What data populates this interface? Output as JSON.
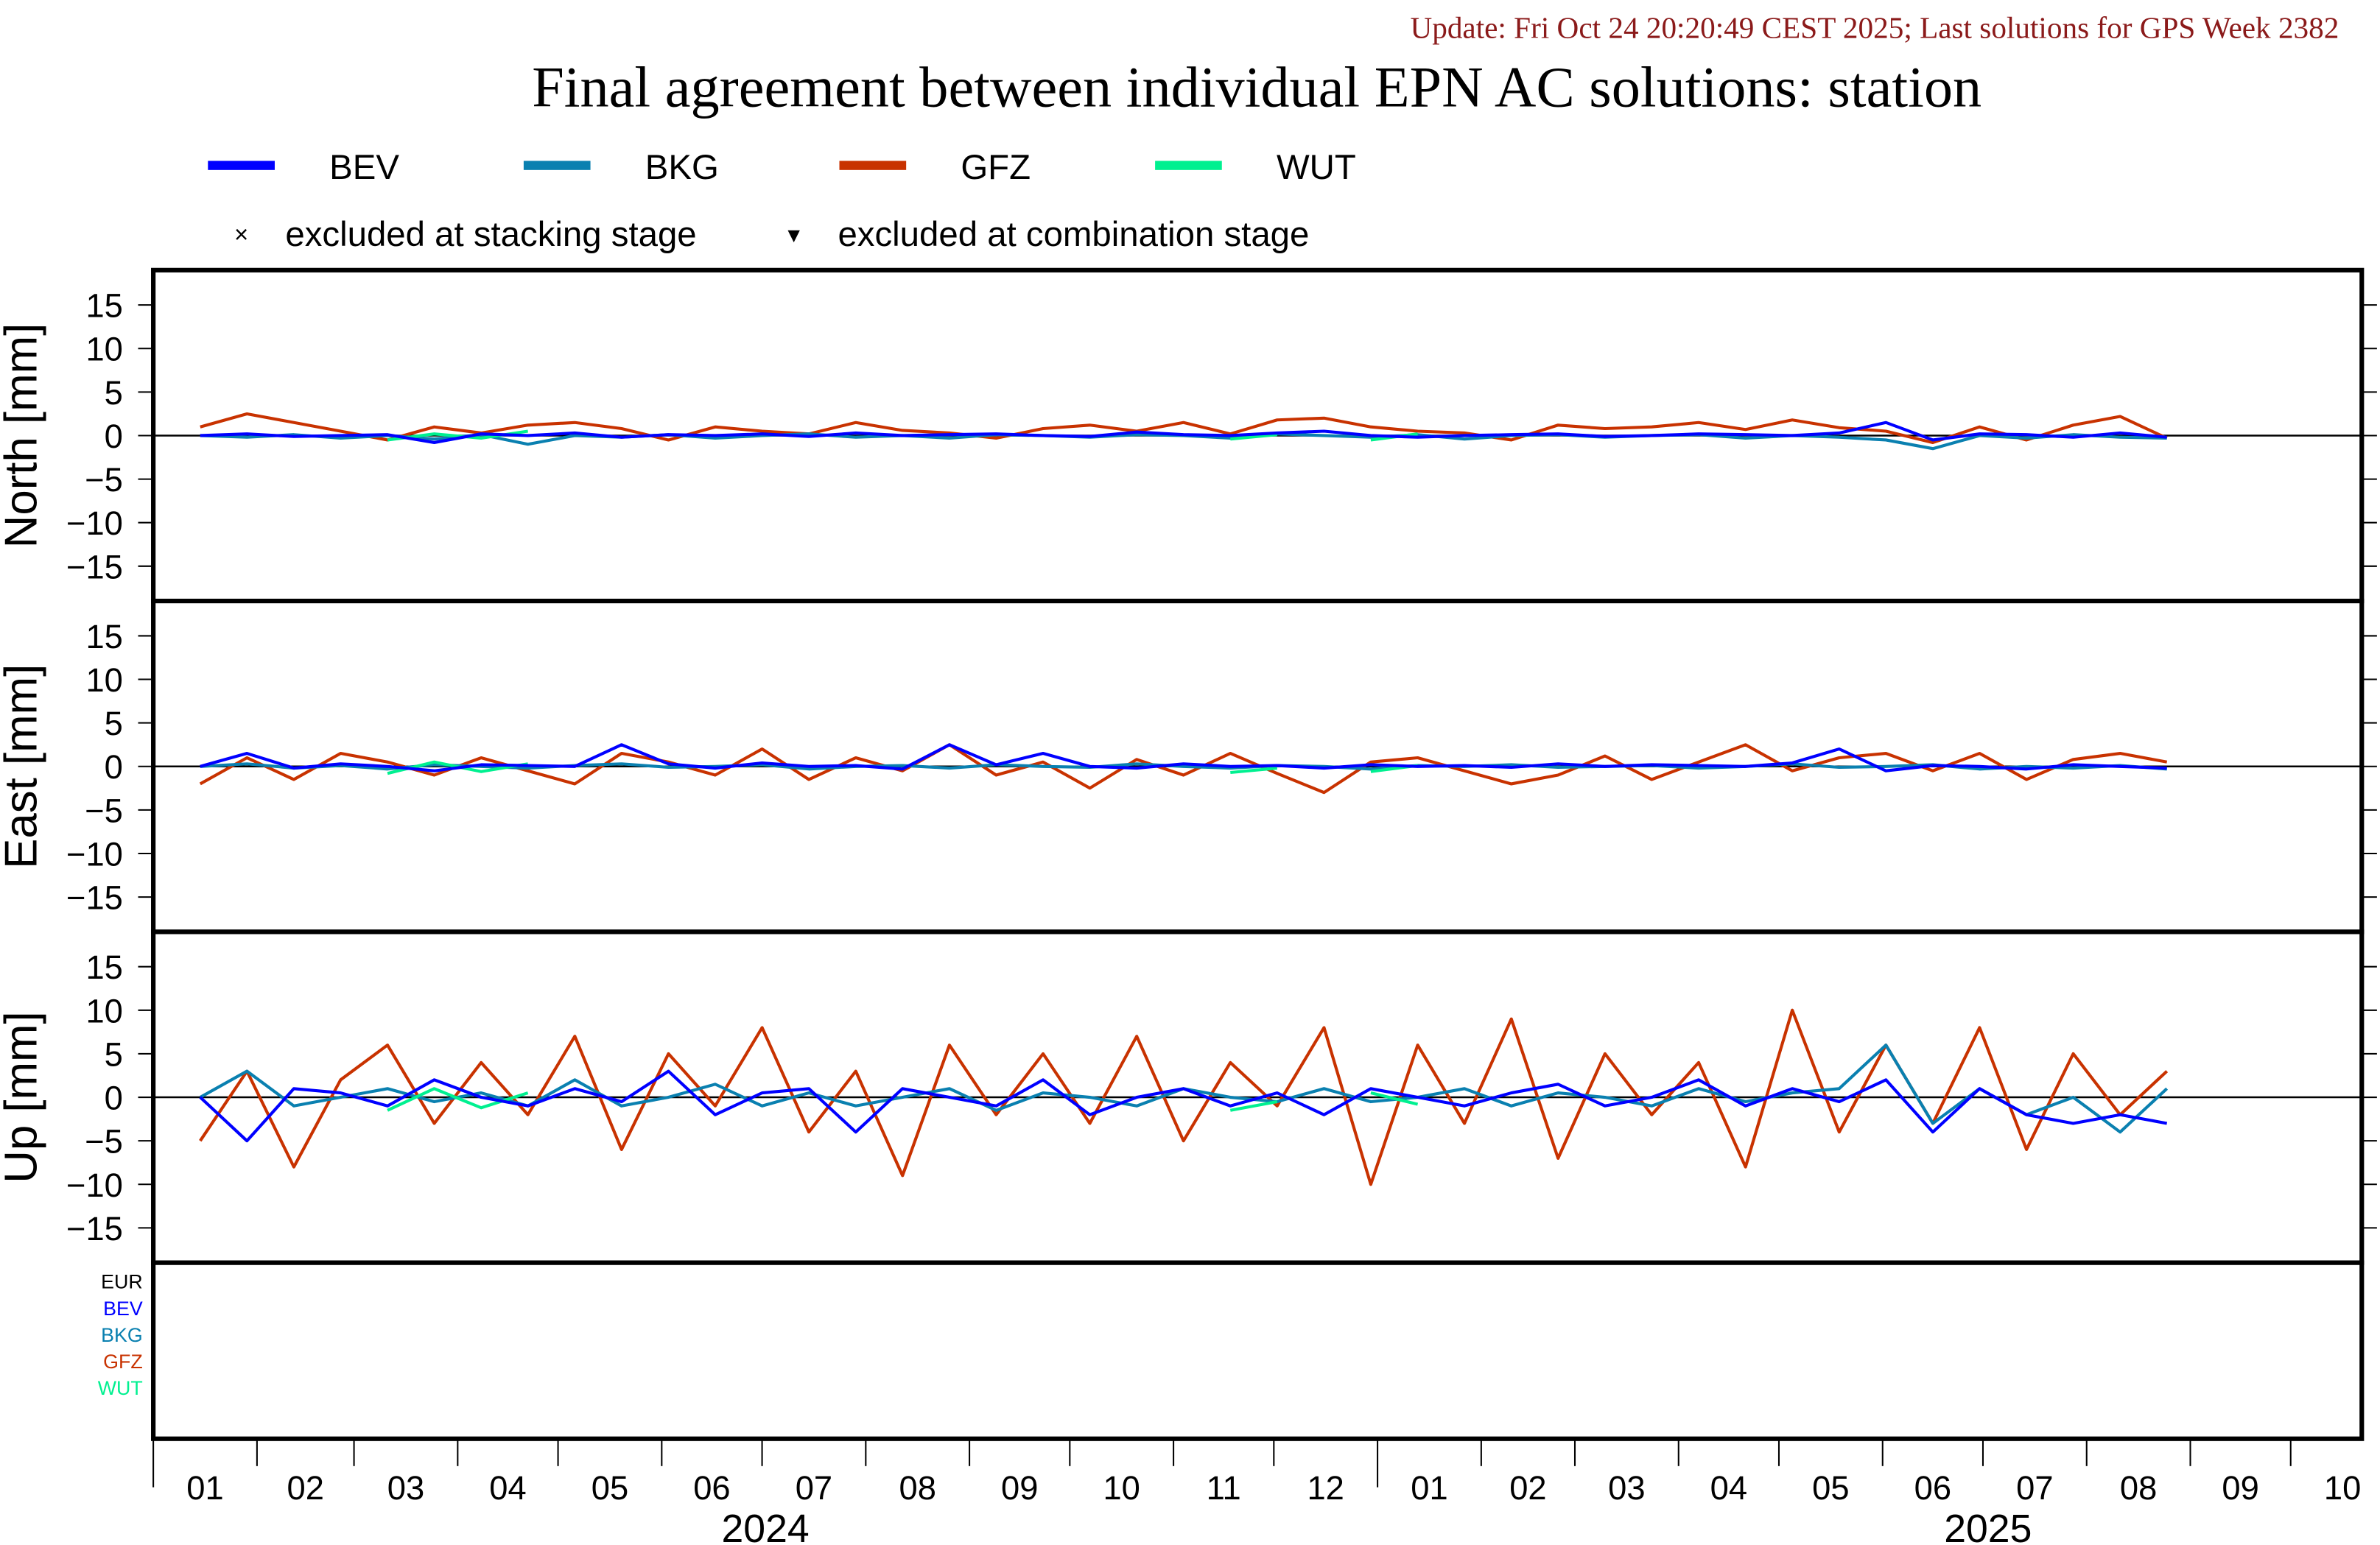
{
  "chart_data": {
    "type": "line",
    "update_note": "Update: Fri Oct 24 20:20:49 CEST 2025; Last solutions for GPS Week 2382",
    "title": "Final agreement between individual EPN AC solutions: station",
    "legend": {
      "placement": "top-left",
      "series": [
        {
          "name": "BEV",
          "color": "#0000ff"
        },
        {
          "name": "BKG",
          "color": "#0a80b0"
        },
        {
          "name": "GFZ",
          "color": "#c83200"
        },
        {
          "name": "WUT",
          "color": "#00f090"
        }
      ],
      "markers": [
        {
          "symbol": "×",
          "label": "excluded at stacking stage"
        },
        {
          "symbol": "▾",
          "label": "excluded at combination stage"
        }
      ]
    },
    "x": {
      "start_date": "2024-01-15",
      "step_days": 14,
      "axis_start": "2024-01-01",
      "axis_end": "2025-10-31"
    },
    "x_ticks": {
      "months_2024": [
        "01",
        "02",
        "03",
        "04",
        "05",
        "06",
        "07",
        "08",
        "09",
        "10",
        "11",
        "12"
      ],
      "months_2025": [
        "01",
        "02",
        "03",
        "04",
        "05",
        "06",
        "07",
        "08",
        "09",
        "10"
      ],
      "years": [
        "2024",
        "2025"
      ]
    },
    "ylim": [
      -19,
      19
    ],
    "yticks": [
      15,
      10,
      5,
      0,
      -5,
      -10,
      -15
    ],
    "panels": [
      {
        "ylabel": "North [mm]",
        "series": {
          "GFZ": [
            1,
            2.5,
            1.5,
            0.5,
            -0.5,
            1,
            0.3,
            1.2,
            1.5,
            0.8,
            -0.5,
            1,
            0.5,
            0.2,
            1.5,
            0.6,
            0.3,
            -0.3,
            0.8,
            1.2,
            0.5,
            1.5,
            0.2,
            1.8,
            2,
            1,
            0.5,
            0.3,
            -0.5,
            1.2,
            0.8,
            1,
            1.5,
            0.7,
            1.8,
            0.9,
            0.5,
            -0.8,
            1,
            -0.5,
            1.2,
            2.2,
            -0.3
          ],
          "BEV": [
            0,
            0.2,
            -0.1,
            0,
            0.1,
            -0.8,
            0.2,
            0,
            0.3,
            -0.2,
            0.1,
            0,
            0.2,
            -0.1,
            0.3,
            0,
            0.1,
            0.2,
            0,
            -0.1,
            0.4,
            0.1,
            0,
            0.3,
            0.5,
            0,
            -0.2,
            0,
            0.1,
            0.2,
            -0.1,
            0,
            0.2,
            0.1,
            0,
            0.3,
            1.5,
            -0.5,
            0.2,
            0.1,
            -0.2,
            0.3,
            -0.2
          ],
          "BKG": [
            0,
            -0.2,
            0.1,
            -0.3,
            0,
            -0.4,
            0.1,
            -1,
            0,
            -0.2,
            0.1,
            -0.3,
            0,
            0.2,
            -0.2,
            0,
            -0.3,
            0.1,
            0,
            -0.2,
            0.1,
            0,
            -0.3,
            0.2,
            0,
            -0.2,
            0.1,
            -0.4,
            0,
            0.1,
            -0.2,
            0,
            0.1,
            -0.3,
            0,
            -0.2,
            -0.5,
            -1.5,
            0,
            -0.3,
            0.1,
            -0.2,
            -0.3
          ],
          "WUT": [
            null,
            null,
            null,
            null,
            -0.5,
            0.2,
            -0.3,
            0.5,
            null,
            null,
            null,
            null,
            null,
            null,
            null,
            null,
            null,
            null,
            null,
            null,
            null,
            null,
            -0.4,
            0.1,
            null,
            -0.5,
            0.2,
            null,
            null,
            null,
            null,
            null,
            null,
            null,
            null,
            null,
            null,
            null,
            null,
            null,
            null,
            null,
            null
          ]
        }
      },
      {
        "ylabel": "East [mm]",
        "series": {
          "GFZ": [
            -2,
            1,
            -1.5,
            1.5,
            0.5,
            -1,
            1,
            -0.5,
            -2,
            1.5,
            0.5,
            -1,
            2,
            -1.5,
            1,
            -0.5,
            2.5,
            -1,
            0.5,
            -2.5,
            0.8,
            -1,
            1.5,
            -0.8,
            -3,
            0.5,
            1,
            -0.5,
            -2,
            -1,
            1.2,
            -1.5,
            0.5,
            2.5,
            -0.5,
            1,
            1.5,
            -0.5,
            1.5,
            -1.5,
            0.8,
            1.5,
            0.5
          ],
          "BEV": [
            0,
            1.5,
            -0.2,
            0.3,
            0,
            -0.5,
            0.2,
            0.1,
            0,
            2.5,
            0.3,
            -0.2,
            0.4,
            0,
            0.1,
            -0.3,
            2.5,
            0.2,
            1.5,
            0,
            -0.2,
            0.3,
            0,
            0.1,
            -0.2,
            0.2,
            0,
            0.1,
            -0.1,
            0.3,
            0,
            0.2,
            0.1,
            0,
            0.4,
            2,
            -0.5,
            0.1,
            0,
            -0.3,
            0.2,
            0,
            -0.2
          ],
          "BKG": [
            0,
            0.3,
            -0.2,
            0.1,
            -0.3,
            0.2,
            0,
            -0.2,
            0.1,
            0.3,
            -0.1,
            0,
            0.2,
            -0.3,
            0,
            0.1,
            -0.2,
            0.2,
            0,
            -0.1,
            0.3,
            0,
            -0.2,
            0.1,
            0,
            -0.3,
            0.1,
            0,
            0.2,
            -0.1,
            0,
            0.1,
            -0.2,
            0,
            0.3,
            -0.1,
            0,
            0.2,
            -0.3,
            0,
            -0.2,
            0.1,
            -0.3
          ],
          "WUT": [
            null,
            null,
            null,
            null,
            -0.8,
            0.5,
            -0.6,
            0.3,
            null,
            null,
            null,
            null,
            null,
            null,
            null,
            null,
            null,
            null,
            null,
            null,
            null,
            null,
            -0.7,
            -0.2,
            null,
            -0.6,
            0.1,
            null,
            null,
            null,
            null,
            null,
            null,
            null,
            null,
            null,
            null,
            null,
            null,
            null,
            null,
            null,
            null
          ]
        }
      },
      {
        "ylabel": "Up [mm]",
        "series": {
          "GFZ": [
            -5,
            3,
            -8,
            2,
            6,
            -3,
            4,
            -2,
            7,
            -6,
            5,
            -1,
            8,
            -4,
            3,
            -9,
            6,
            -2,
            5,
            -3,
            7,
            -5,
            4,
            -1,
            8,
            -10,
            6,
            -3,
            9,
            -7,
            5,
            -2,
            4,
            -8,
            10,
            -4,
            6,
            -3,
            8,
            -6,
            5,
            -2,
            3
          ],
          "BEV": [
            0,
            -5,
            1,
            0.5,
            -1,
            2,
            0,
            -1,
            1,
            -0.5,
            3,
            -2,
            0.5,
            1,
            -4,
            1,
            0,
            -1,
            2,
            -2,
            0,
            1,
            -1,
            0.5,
            -2,
            1,
            0,
            -1,
            0.5,
            1.5,
            -1,
            0,
            2,
            -1,
            1,
            -0.5,
            2,
            -4,
            1,
            -2,
            -3,
            -2,
            -3
          ],
          "BKG": [
            0,
            3,
            -1,
            0,
            1,
            -0.5,
            0.5,
            -1,
            2,
            -1,
            0,
            1.5,
            -1,
            0.5,
            -1,
            0,
            1,
            -1.5,
            0.5,
            0,
            -1,
            1,
            0,
            -0.5,
            1,
            -0.5,
            0,
            1,
            -1,
            0.5,
            0,
            -1,
            1,
            -0.5,
            0.5,
            1,
            6,
            -3,
            1,
            -2,
            0,
            -4,
            1
          ],
          "WUT": [
            null,
            null,
            null,
            null,
            -1.5,
            1,
            -1.2,
            0.5,
            null,
            null,
            null,
            null,
            null,
            null,
            null,
            null,
            null,
            null,
            null,
            null,
            null,
            null,
            -1.5,
            -0.5,
            null,
            0.5,
            -0.8,
            null,
            null,
            null,
            null,
            null,
            null,
            null,
            null,
            null,
            null,
            null,
            null,
            null,
            null,
            null,
            null
          ]
        }
      }
    ],
    "bottom_panel_labels": [
      {
        "text": "EUR",
        "color": "#000000"
      },
      {
        "text": "BEV",
        "color": "#0000ff"
      },
      {
        "text": "BKG",
        "color": "#0a80b0"
      },
      {
        "text": "GFZ",
        "color": "#c83200"
      },
      {
        "text": "WUT",
        "color": "#00f090"
      }
    ]
  }
}
